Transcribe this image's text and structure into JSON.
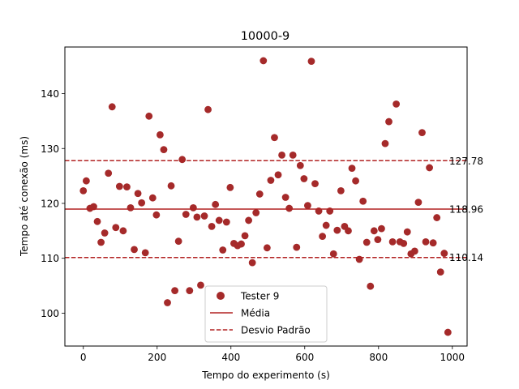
{
  "chart_data": {
    "type": "scatter",
    "title": "10000-9",
    "xlabel": "Tempo do experimento (s)",
    "ylabel": "Tempo até conexão (ms)",
    "xlim": [
      -50,
      1040
    ],
    "ylim": [
      94,
      148.5
    ],
    "xticks": [
      0,
      200,
      400,
      600,
      800,
      1000
    ],
    "yticks": [
      100,
      110,
      120,
      130,
      140
    ],
    "grid": false,
    "legend_position": "lower center",
    "colors": {
      "points": "#a52a2a",
      "lines": "#b22222"
    },
    "series": [
      {
        "name": "Tester 9",
        "x": [
          0,
          8,
          18,
          28,
          38,
          48,
          58,
          68,
          78,
          88,
          98,
          108,
          118,
          128,
          138,
          148,
          158,
          168,
          178,
          188,
          198,
          208,
          218,
          228,
          238,
          248,
          258,
          268,
          278,
          288,
          298,
          308,
          318,
          328,
          338,
          348,
          358,
          368,
          378,
          388,
          398,
          408,
          418,
          428,
          438,
          448,
          458,
          468,
          478,
          488,
          498,
          508,
          518,
          528,
          538,
          548,
          558,
          568,
          578,
          588,
          598,
          608,
          618,
          628,
          638,
          648,
          658,
          668,
          678,
          688,
          698,
          708,
          718,
          728,
          738,
          748,
          758,
          768,
          778,
          788,
          798,
          808,
          818,
          828,
          838,
          848,
          858,
          868,
          878,
          888,
          898,
          908,
          918,
          928,
          938,
          948,
          958,
          968,
          978,
          988
        ],
        "y": [
          122.3,
          124.1,
          119.1,
          119.4,
          116.7,
          112.9,
          114.6,
          125.5,
          137.6,
          115.6,
          123.1,
          115.0,
          123.0,
          119.2,
          111.6,
          121.8,
          120.1,
          111.0,
          135.9,
          121.0,
          117.9,
          132.5,
          129.8,
          101.9,
          123.2,
          104.1,
          113.1,
          128.0,
          118.0,
          104.1,
          119.2,
          117.5,
          105.1,
          117.7,
          137.1,
          115.8,
          119.8,
          116.9,
          111.5,
          116.6,
          122.9,
          112.7,
          112.3,
          112.6,
          114.1,
          116.9,
          109.2,
          118.3,
          121.7,
          146.0,
          111.9,
          124.2,
          132.0,
          125.2,
          128.8,
          121.1,
          119.1,
          128.8,
          112.0,
          126.9,
          124.5,
          119.6,
          145.9,
          123.6,
          118.6,
          114.0,
          116.0,
          118.6,
          110.8,
          115.1,
          122.3,
          115.8,
          115.0,
          126.4,
          124.1,
          109.8,
          120.4,
          112.9,
          104.9,
          115.0,
          113.4,
          115.4,
          130.9,
          134.9,
          113.0,
          138.1,
          113.0,
          112.7,
          114.8,
          110.8,
          111.3,
          120.2,
          132.9,
          113.0,
          126.5,
          112.8,
          117.4,
          107.5,
          110.9,
          96.5
        ]
      }
    ],
    "hlines": [
      {
        "name": "Média",
        "y": 118.96,
        "style": "solid",
        "label": "118.96"
      },
      {
        "name": "Desvio Padrão",
        "y": 127.78,
        "style": "dashed",
        "label": "127.78"
      },
      {
        "name": "Desvio Padrão",
        "y": 110.14,
        "style": "dashed",
        "label": "110.14"
      }
    ],
    "legend": [
      "Tester 9",
      "Média",
      "Desvio Padrão"
    ]
  }
}
